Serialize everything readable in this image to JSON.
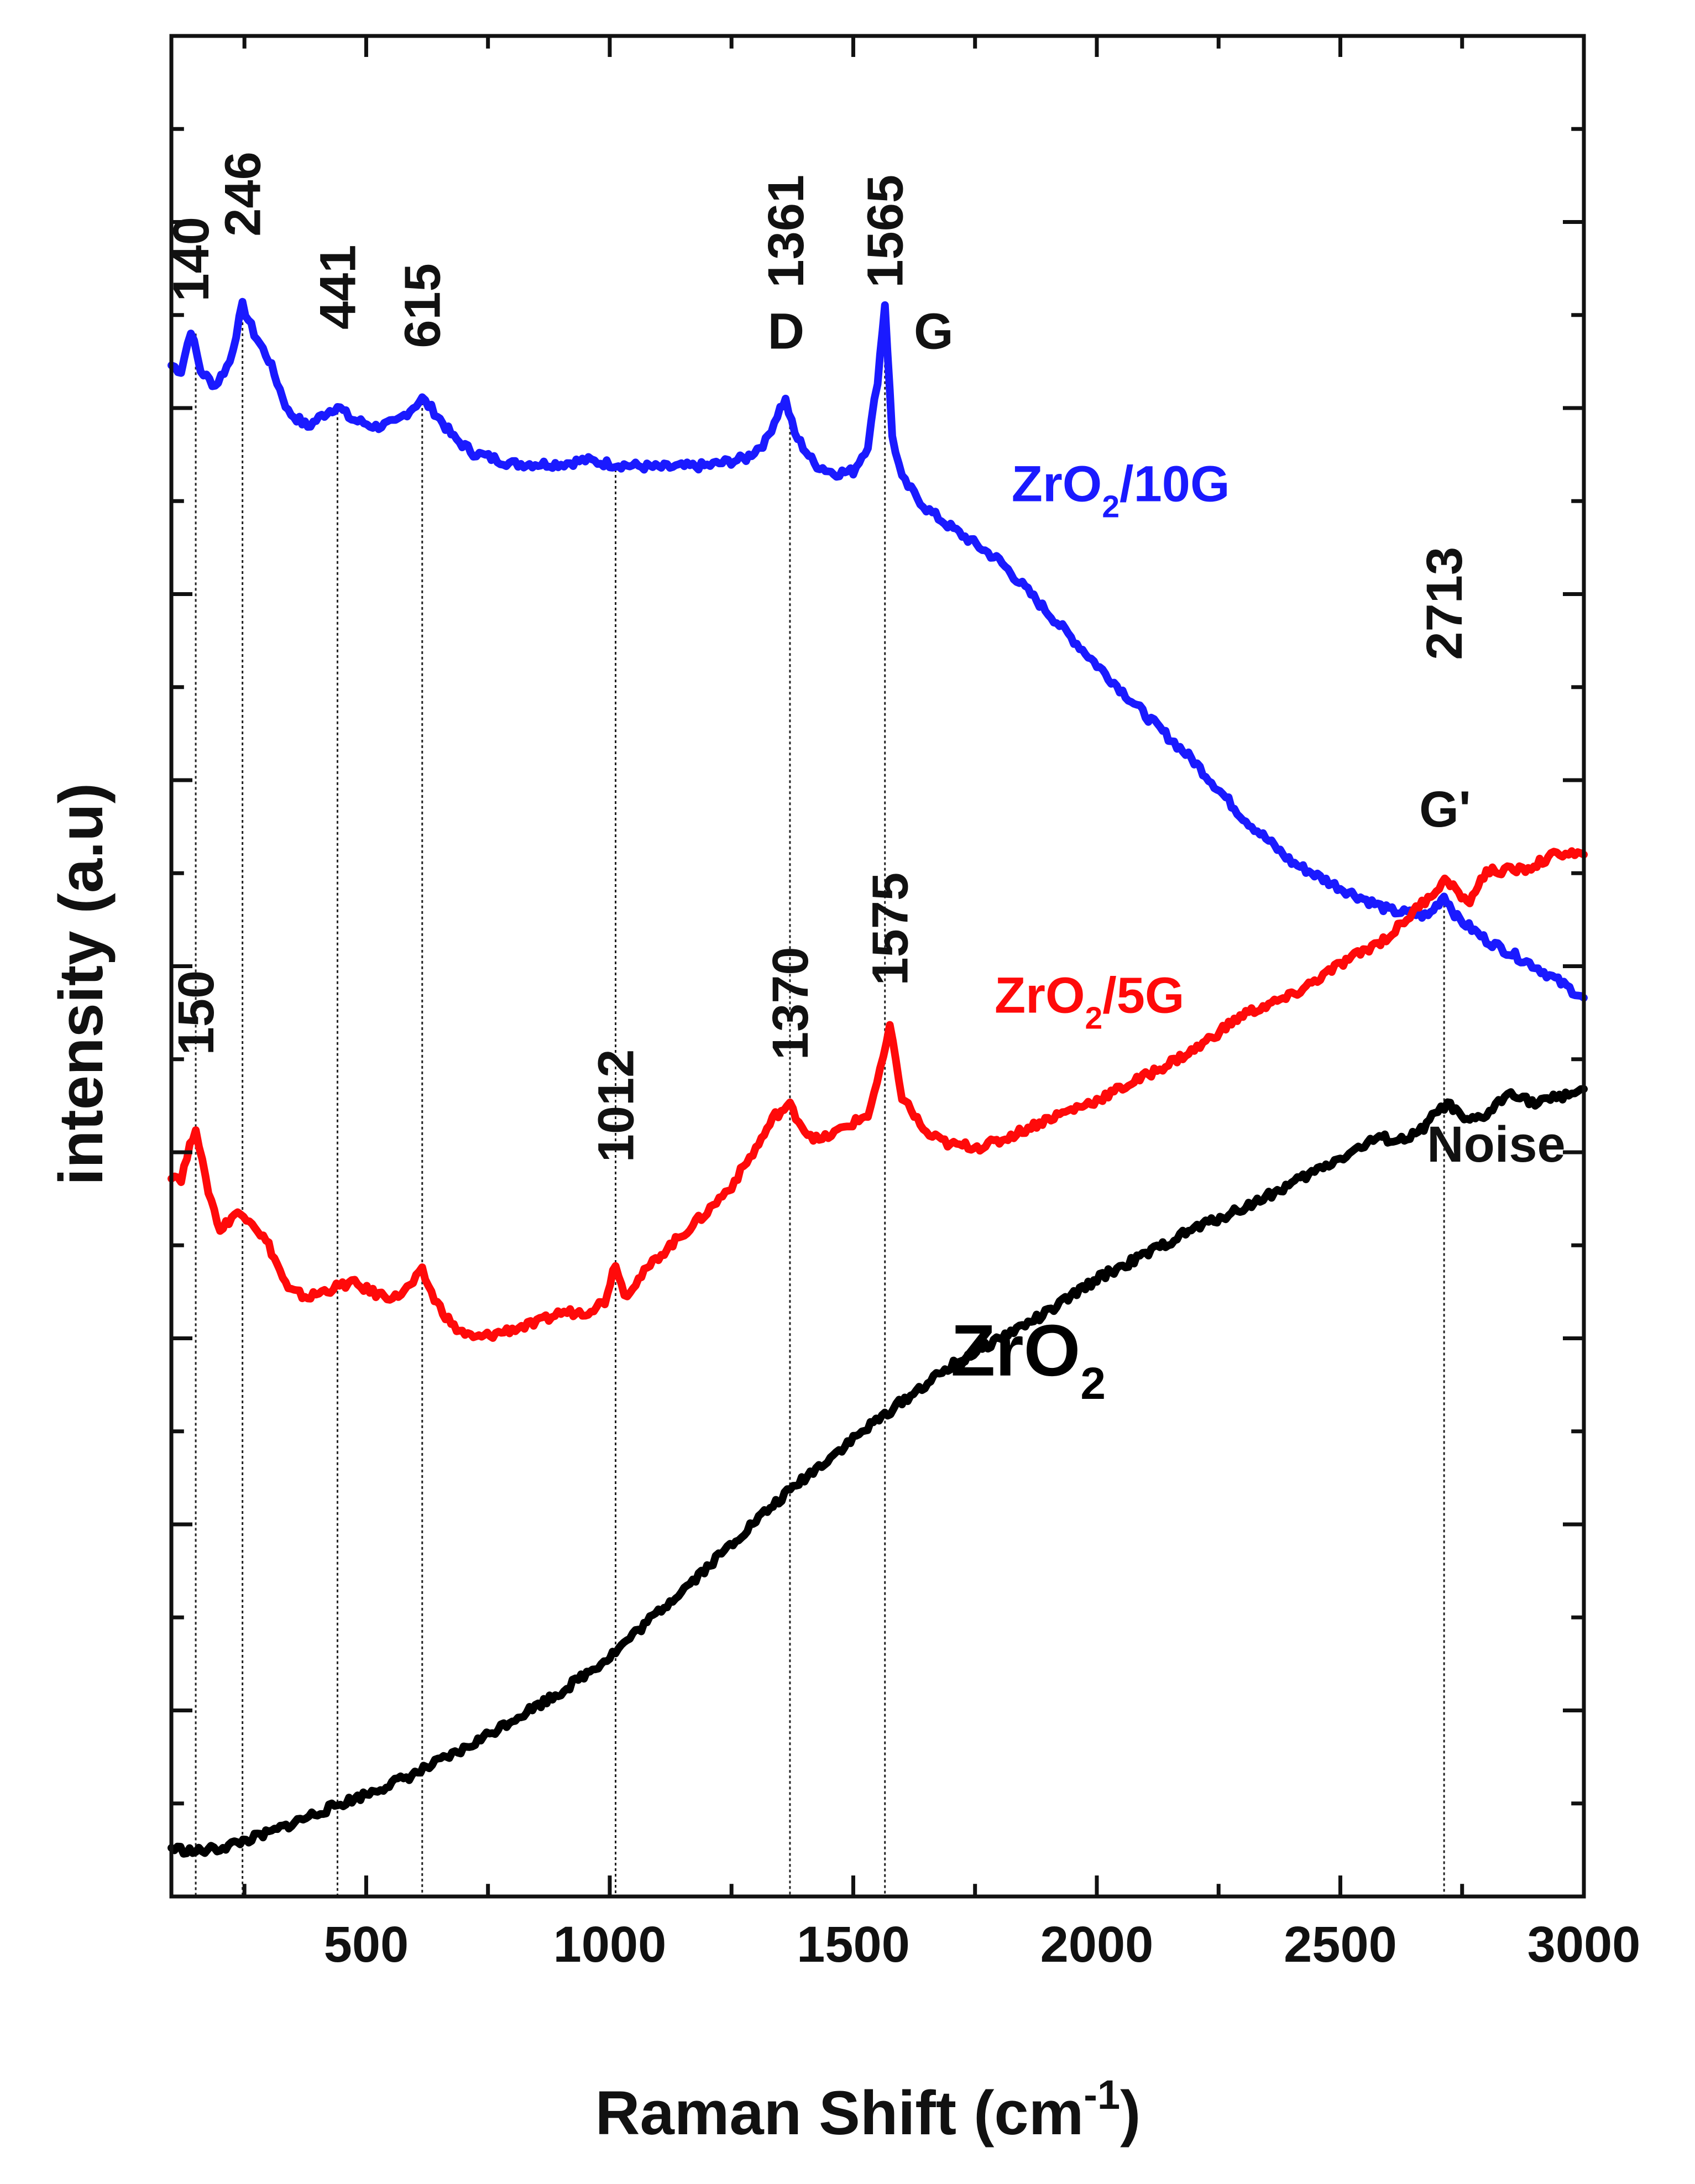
{
  "chart_data": {
    "type": "line",
    "title": "",
    "xlabel": "Raman Shift (cm",
    "xlabel_sup": "-1",
    "xlabel_close": ")",
    "ylabel": "intensity (a.u)",
    "xlim": [
      100,
      3000
    ],
    "ylim": [
      0,
      100
    ],
    "grid": false,
    "x_ticks": [
      500,
      1000,
      1500,
      2000,
      2500,
      3000
    ],
    "x_tick_labels": [
      "500",
      "1000",
      "1500",
      "2000",
      "2500",
      "3000"
    ],
    "series": [
      {
        "name": "ZrO2/10G",
        "label_main": "ZrO",
        "label_sub": "2",
        "label_tail": "/10G",
        "color": "#1a1aff",
        "x": [
          100,
          120,
          140,
          160,
          190,
          220,
          246,
          270,
          300,
          340,
          380,
          420,
          441,
          470,
          520,
          560,
          590,
          615,
          640,
          680,
          720,
          800,
          900,
          950,
          1000,
          1100,
          1200,
          1280,
          1320,
          1350,
          1361,
          1380,
          1420,
          1460,
          1500,
          1530,
          1550,
          1565,
          1580,
          1600,
          1650,
          1700,
          1800,
          1900,
          2000,
          2100,
          2200,
          2300,
          2400,
          2500,
          2600,
          2680,
          2713,
          2740,
          2800,
          2900,
          3000
        ],
        "y": [
          82.3,
          82.0,
          84.2,
          82.0,
          81.2,
          82.5,
          85.5,
          84.0,
          82.6,
          79.8,
          79.0,
          79.8,
          80.1,
          79.4,
          79.0,
          79.2,
          79.9,
          80.5,
          79.8,
          78.4,
          77.6,
          77.0,
          77.0,
          77.2,
          77.0,
          76.8,
          76.9,
          77.3,
          78.2,
          80.0,
          80.4,
          78.6,
          77.0,
          76.5,
          76.6,
          78.0,
          81.5,
          85.6,
          78.5,
          76.2,
          74.6,
          73.6,
          71.8,
          69.0,
          66.2,
          63.5,
          61.0,
          58.0,
          55.6,
          54.2,
          53.0,
          52.7,
          53.8,
          52.6,
          51.4,
          50.0,
          48.3
        ]
      },
      {
        "name": "ZrO2/5G",
        "label_main": "ZrO",
        "label_sub": "2",
        "label_tail": "/5G",
        "color": "#ff0a0a",
        "x": [
          100,
          120,
          150,
          170,
          200,
          230,
          260,
          300,
          340,
          380,
          420,
          470,
          520,
          560,
          590,
          615,
          640,
          680,
          720,
          760,
          800,
          850,
          900,
          950,
          990,
          1012,
          1030,
          1100,
          1200,
          1250,
          1300,
          1340,
          1370,
          1400,
          1430,
          1480,
          1530,
          1555,
          1575,
          1600,
          1650,
          1700,
          1760,
          1800,
          1900,
          2000,
          2100,
          2200,
          2300,
          2400,
          2500,
          2600,
          2680,
          2720,
          2760,
          2800,
          2880,
          2950,
          3000
        ],
        "y": [
          38.8,
          38.6,
          41.4,
          38.5,
          35.8,
          36.7,
          36.5,
          35.0,
          32.6,
          32.2,
          32.6,
          33.0,
          32.4,
          32.2,
          32.8,
          33.6,
          32.1,
          30.6,
          30.0,
          30.2,
          30.5,
          30.8,
          31.4,
          31.4,
          32.0,
          34.1,
          32.3,
          34.4,
          36.8,
          38.2,
          40.2,
          42.0,
          42.5,
          41.2,
          40.6,
          41.3,
          42.0,
          44.3,
          46.7,
          43.0,
          41.0,
          40.4,
          40.3,
          40.6,
          41.8,
          42.8,
          44.1,
          45.5,
          47.4,
          48.4,
          50.1,
          51.6,
          53.7,
          54.7,
          53.3,
          55.1,
          55.2,
          56.1,
          56.0
        ]
      },
      {
        "name": "ZrO2",
        "label_main": "ZrO",
        "label_sub": "2",
        "label_tail": "",
        "color": "#000000",
        "x": [
          100,
          150,
          200,
          300,
          400,
          500,
          600,
          700,
          800,
          900,
          1000,
          1100,
          1200,
          1300,
          1400,
          1500,
          1600,
          1700,
          1800,
          1900,
          2000,
          2100,
          2200,
          2300,
          2400,
          2500,
          2580,
          2620,
          2660,
          2700,
          2720,
          2760,
          2800,
          2850,
          2900,
          2950,
          3000
        ],
        "y": [
          2.6,
          2.4,
          2.6,
          3.4,
          4.5,
          5.5,
          6.6,
          7.9,
          9.5,
          11.0,
          12.9,
          15.3,
          17.7,
          20.2,
          22.5,
          24.6,
          26.6,
          28.5,
          30.0,
          31.4,
          33.2,
          34.5,
          35.9,
          37.0,
          38.3,
          39.7,
          40.8,
          40.6,
          41.0,
          42.2,
          42.6,
          41.6,
          42.0,
          43.3,
          42.6,
          43.0,
          43.4
        ]
      }
    ],
    "peak_lines": [
      {
        "x": 150,
        "y_top": 84.0
      },
      {
        "x": 246,
        "y_top": 85.2
      },
      {
        "x": 441,
        "y_top": 79.8
      },
      {
        "x": 615,
        "y_top": 80.3
      },
      {
        "x": 1012,
        "y_top": 77.0
      },
      {
        "x": 1370,
        "y_top": 80.2
      },
      {
        "x": 1565,
        "y_top": 85.3
      },
      {
        "x": 2713,
        "y_top": 53.6
      }
    ],
    "peak_labels": [
      {
        "text": "140",
        "x": 140,
        "y": 88.0
      },
      {
        "text": "246",
        "x": 246,
        "y": 91.5
      },
      {
        "text": "441",
        "x": 441,
        "y": 86.5
      },
      {
        "text": "615",
        "x": 615,
        "y": 85.5
      },
      {
        "text": "1361",
        "x": 1361,
        "y": 89.5
      },
      {
        "text": "1565",
        "x": 1565,
        "y": 89.5
      },
      {
        "text": "2713",
        "x": 2713,
        "y": 69.5
      },
      {
        "text": "150",
        "x": 150,
        "y": 47.5
      },
      {
        "text": "1012",
        "x": 1012,
        "y": 42.5
      },
      {
        "text": "1370",
        "x": 1370,
        "y": 48.0
      },
      {
        "text": "1575",
        "x": 1575,
        "y": 52.0
      }
    ],
    "band_labels": [
      {
        "text": "D",
        "x": 1362,
        "y": 83.2
      },
      {
        "text": "G",
        "x": 1665,
        "y": 83.2
      },
      {
        "text": "G'",
        "x": 2715,
        "y": 57.5
      },
      {
        "text": "Noise",
        "x": 2820,
        "y": 39.5
      }
    ],
    "series_labels": [
      {
        "series": 0,
        "x": 1825,
        "y": 75.0,
        "size": 92
      },
      {
        "series": 1,
        "x": 1790,
        "y": 47.5,
        "size": 92
      },
      {
        "series": 2,
        "x": 1700,
        "y": 28.0,
        "size": 132
      }
    ]
  }
}
